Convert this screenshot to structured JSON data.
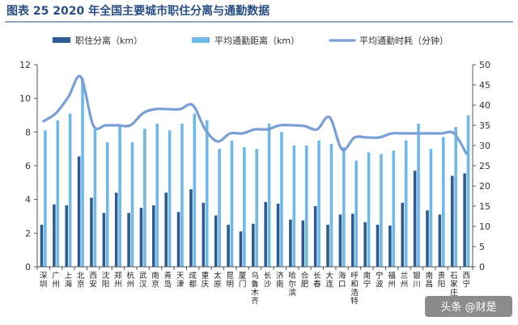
{
  "title": "图表 25 2020 年全国主要城市职住分离与通勤数据",
  "watermark": "头条 @财是",
  "colors": {
    "title": "#2a4f86",
    "series_dark": "#2f5b93",
    "series_light": "#6fb9ea",
    "series_line": "#7a9fd6"
  },
  "chart_data": {
    "type": "bar",
    "categories": [
      "深圳",
      "广州",
      "上海",
      "北京",
      "西安",
      "沈阳",
      "郑州",
      "杭州",
      "武汉",
      "南京",
      "青岛",
      "天津",
      "成都",
      "重庆",
      "太原",
      "昆明",
      "厦门",
      "乌鲁木齐",
      "长沙",
      "济南",
      "哈尔滨",
      "合肥",
      "长春",
      "大连",
      "海口",
      "呼和浩特",
      "南宁",
      "宁波",
      "福州",
      "兰州",
      "银川",
      "南昌",
      "贵阳",
      "石家庄",
      "西宁"
    ],
    "series": [
      {
        "name": "职住分离（km）",
        "type": "bar",
        "axis": "left",
        "values": [
          2.5,
          3.7,
          3.65,
          6.55,
          4.1,
          3.2,
          4.4,
          3.2,
          3.5,
          3.65,
          4.4,
          3.25,
          4.6,
          3.8,
          3.05,
          2.5,
          2.1,
          2.55,
          3.85,
          3.75,
          2.8,
          2.75,
          3.6,
          2.5,
          3.1,
          3.15,
          2.65,
          2.5,
          2.45,
          3.8,
          5.7,
          3.35,
          3.1,
          5.4,
          5.55
        ]
      },
      {
        "name": "平均通勤距离（km）",
        "type": "bar",
        "axis": "left",
        "values": [
          8.1,
          8.7,
          9.1,
          11.2,
          8.3,
          7.4,
          8.4,
          7.4,
          8.2,
          8.5,
          8.1,
          8.5,
          9.1,
          8.7,
          7.0,
          7.5,
          7.1,
          7.0,
          8.5,
          8.0,
          7.2,
          7.2,
          7.5,
          7.3,
          7.1,
          6.3,
          6.8,
          6.7,
          6.9,
          7.5,
          8.5,
          7.0,
          7.7,
          8.3,
          9.0
        ]
      },
      {
        "name": "平均通勤时耗（分钟）",
        "type": "line",
        "axis": "right",
        "values": [
          36,
          38,
          42,
          47,
          35,
          35,
          35,
          35,
          38,
          39,
          39,
          39,
          40,
          34,
          31,
          33,
          33,
          34,
          34,
          35,
          35,
          34.8,
          34,
          37,
          29,
          32,
          32,
          32,
          33,
          33,
          33,
          33,
          33,
          33,
          28
        ]
      }
    ],
    "y_left": {
      "min": 0,
      "max": 12,
      "ticks": [
        0,
        2,
        4,
        6,
        8,
        10,
        12
      ]
    },
    "y_right": {
      "min": 0,
      "max": 50,
      "ticks": [
        0,
        5,
        10,
        15,
        20,
        25,
        30,
        35,
        40,
        45,
        50
      ]
    },
    "legend_position": "top",
    "grid": false
  }
}
